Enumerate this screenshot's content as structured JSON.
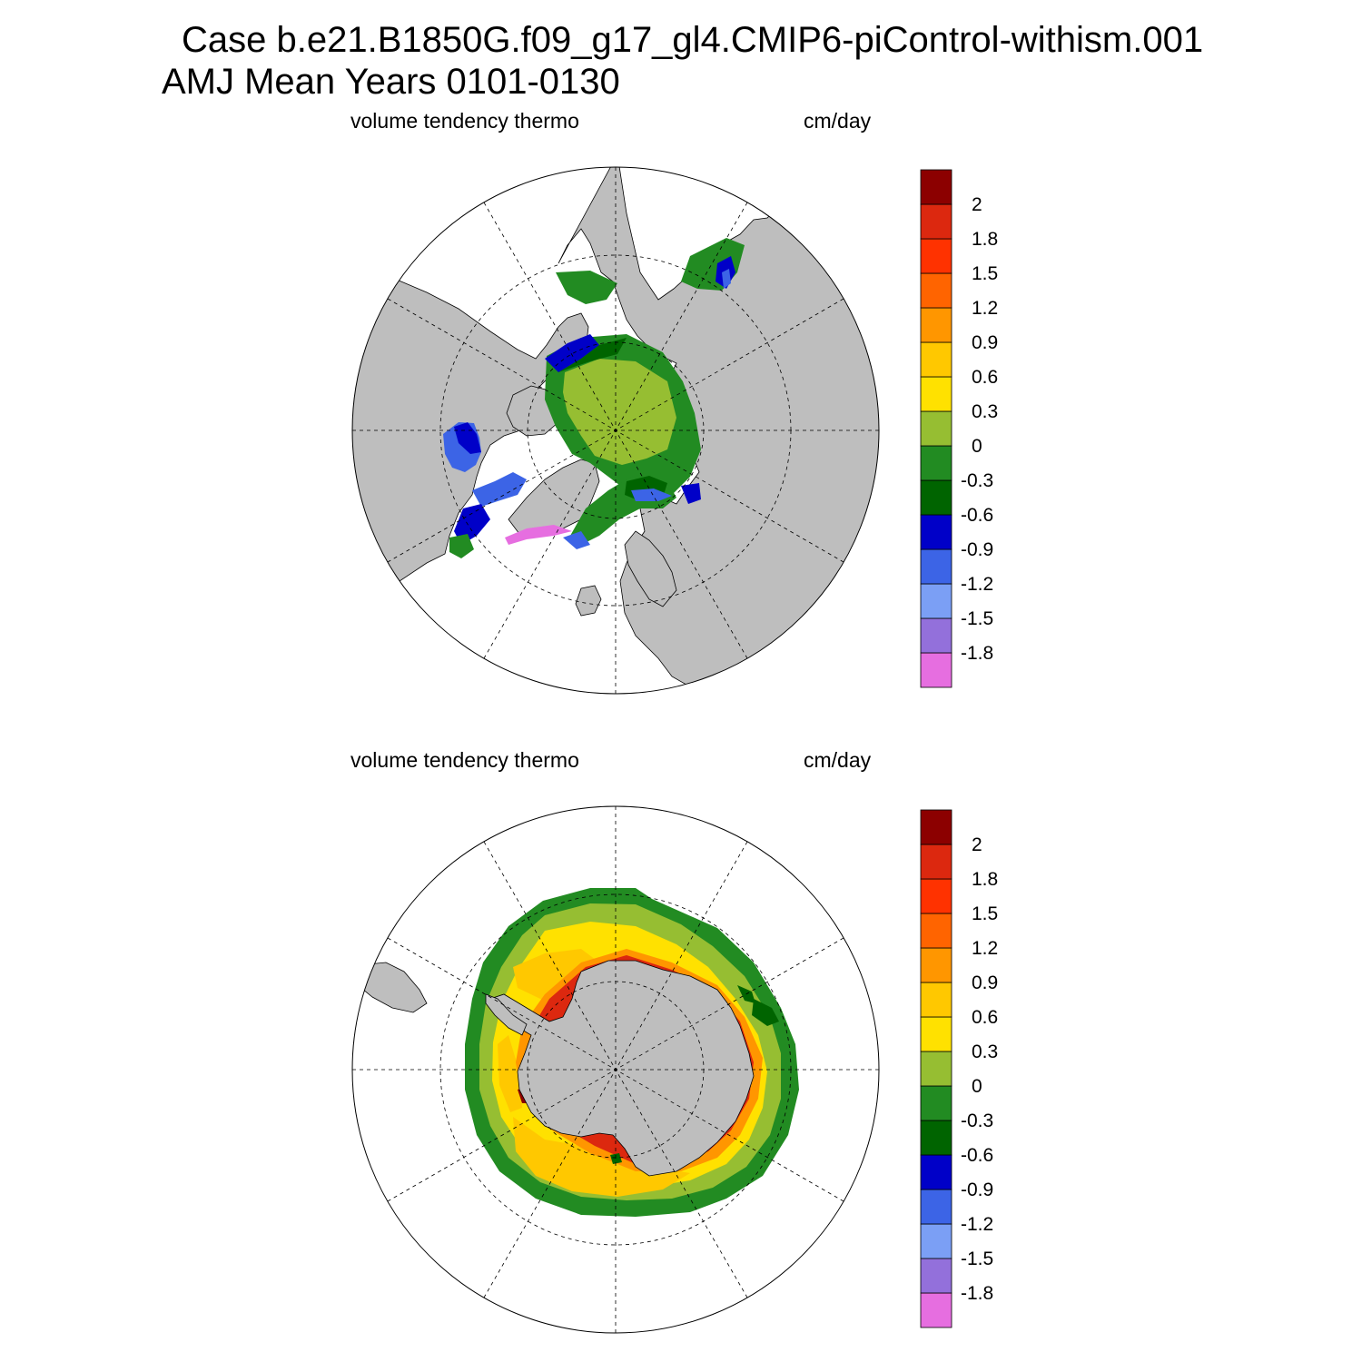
{
  "title": {
    "line1": "Case b.e21.B1850G.f09_g17_gl4.CMIP6-piControl-withism.001",
    "line2": "AMJ Mean   Years 0101-0130"
  },
  "colors": {
    "land": "#bebebe",
    "ocean_no_ice": "#ffffff"
  },
  "colorbar": {
    "colors": [
      "#e66ee0",
      "#9370db",
      "#7b9ff5",
      "#3c64e6",
      "#0000c8",
      "#006400",
      "#228b22",
      "#96be32",
      "#ffe100",
      "#ffc800",
      "#ff9600",
      "#ff6400",
      "#ff3200",
      "#dc280f",
      "#8c0000"
    ],
    "tick_labels": [
      "-1.8",
      "-1.5",
      "-1.2",
      "-0.9",
      "-0.6",
      "-0.3",
      "0",
      "0.3",
      "0.6",
      "0.9",
      "1.2",
      "1.5",
      "1.8",
      "2"
    ]
  },
  "panels": [
    {
      "id": "north",
      "left_label": "volume tendency thermo",
      "right_label": "cm/day"
    },
    {
      "id": "south",
      "left_label": "volume tendency thermo",
      "right_label": "cm/day"
    }
  ]
}
